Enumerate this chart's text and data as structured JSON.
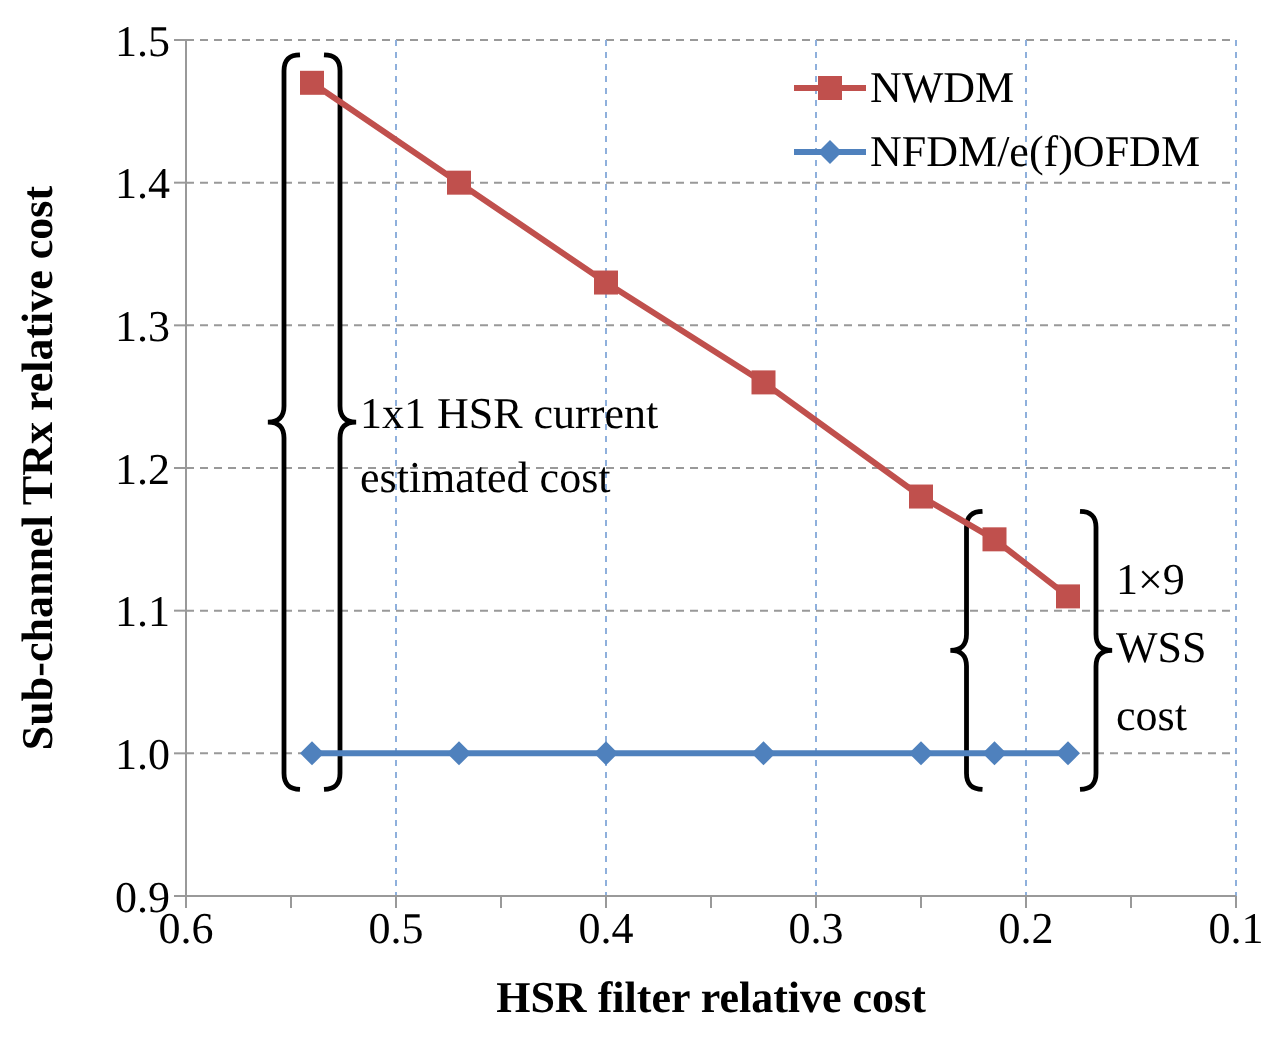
{
  "chart_data": {
    "type": "line",
    "xlabel": "HSR filter relative cost",
    "ylabel": "Sub-channel  TRx relative cost",
    "x": [
      0.54,
      0.47,
      0.4,
      0.325,
      0.25,
      0.215,
      0.18
    ],
    "series": [
      {
        "name": "NWDM",
        "color": "#c0504d",
        "marker": "square",
        "values": [
          1.47,
          1.4,
          1.33,
          1.26,
          1.18,
          1.15,
          1.11
        ]
      },
      {
        "name": "NFDM/e(f)OFDM",
        "color": "#4f81bd",
        "marker": "diamond",
        "values": [
          1.0,
          1.0,
          1.0,
          1.0,
          1.0,
          1.0,
          1.0
        ]
      }
    ],
    "xlim": [
      0.6,
      0.1
    ],
    "xticks": [
      0.6,
      {
        "value": 0.55,
        "label": null
      },
      0.5,
      {
        "value": 0.45,
        "label": null
      },
      0.4,
      {
        "value": 0.35,
        "label": null
      },
      0.3,
      {
        "value": 0.25,
        "label": null
      },
      0.2,
      {
        "value": 0.15,
        "label": null
      },
      0.1
    ],
    "ylim": [
      0.9,
      1.5
    ],
    "yticks": [
      0.9,
      {
        "value": 1,
        "label": "1.0"
      },
      1.1,
      1.2,
      1.3,
      1.4,
      1.5
    ],
    "grid": true,
    "legend": "top right",
    "annotations": [
      "1x1 HSR current estimated cost",
      "1×9 WSS cost"
    ]
  }
}
